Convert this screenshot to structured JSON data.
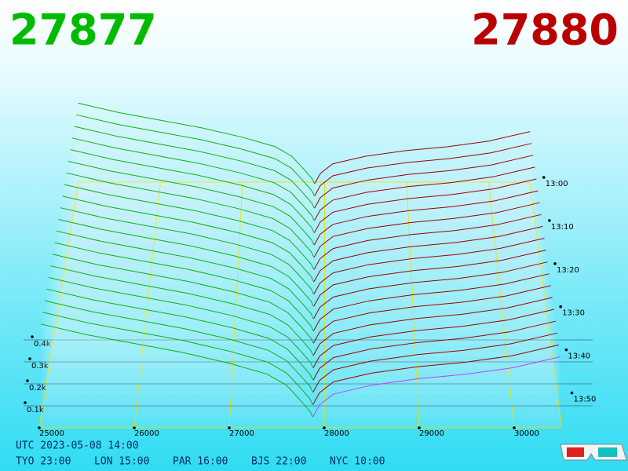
{
  "header": {
    "bid_price": 27877,
    "ask_price": 27880
  },
  "chart_data": {
    "type": "depth3d",
    "xlim": [
      25000,
      30500
    ],
    "xticks": [
      25000,
      26000,
      27000,
      28000,
      29000,
      30000
    ],
    "ylim": [
      0,
      500
    ],
    "yticks": [
      {
        "value": 100,
        "label": "0.1k"
      },
      {
        "value": 200,
        "label": "0.2k"
      },
      {
        "value": 300,
        "label": "0.3k"
      },
      {
        "value": 400,
        "label": "0.4k"
      }
    ],
    "zlim": [
      0,
      57
    ],
    "zticks": [
      {
        "value": 0,
        "label": "13:00"
      },
      {
        "value": 10,
        "label": "13:10"
      },
      {
        "value": 20,
        "label": "13:20"
      },
      {
        "value": 30,
        "label": "13:30"
      },
      {
        "value": 40,
        "label": "13:40"
      },
      {
        "value": 50,
        "label": "13:50"
      }
    ],
    "series": [
      {
        "color": "#10b010",
        "x": [
          25000,
          25500,
          26000,
          26500,
          27000,
          27400,
          27600,
          27750,
          27850,
          27877
        ],
        "values": [
          430,
          380,
          340,
          300,
          250,
          200,
          150,
          80,
          30,
          5
        ]
      },
      {
        "color": "#a00000",
        "x": [
          27880,
          27950,
          28100,
          28500,
          29000,
          29500,
          30000,
          30500
        ],
        "values": [
          5,
          60,
          110,
          150,
          180,
          200,
          230,
          280
        ]
      }
    ]
  },
  "footer": {
    "utc": "UTC 2023-05-08 14:00",
    "clocks": [
      "TYO 23:00",
      "LON 15:00",
      "PAR 16:00",
      "BJS 22:00",
      "NYC 10:00"
    ]
  }
}
